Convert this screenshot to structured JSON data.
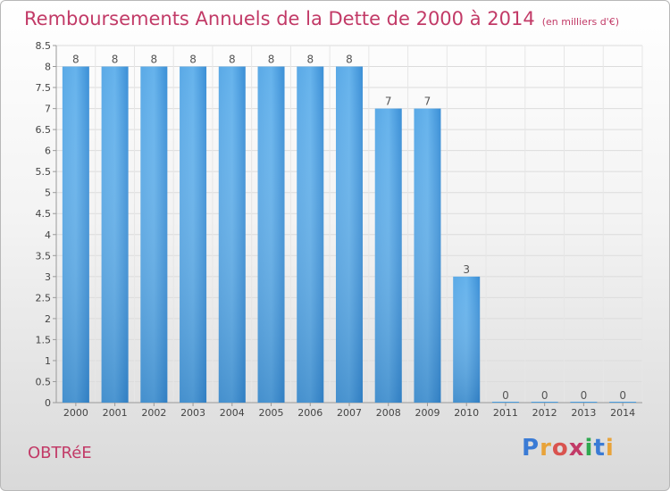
{
  "title": "Remboursements Annuels de la Dette de 2000 à 2014",
  "title_unit": "(en milliers d'€)",
  "commune": "OBTRéE",
  "logo_text": "Proxiti",
  "colors": {
    "bar": "#4a9ee0",
    "bar_light": "#6cb6ee",
    "title": "#c23a67",
    "logo": [
      "#3a7bd5",
      "#e8a33a",
      "#d9534f",
      "#c23a67",
      "#2fa84f",
      "#3a7bd5",
      "#e8a33a"
    ]
  },
  "chart_data": {
    "type": "bar",
    "title": "Remboursements Annuels de la Dette de 2000 à 2014",
    "ylabel": "en milliers d'€",
    "categories": [
      "2000",
      "2001",
      "2002",
      "2003",
      "2004",
      "2005",
      "2006",
      "2007",
      "2008",
      "2009",
      "2010",
      "2011",
      "2012",
      "2013",
      "2014"
    ],
    "values": [
      8,
      8,
      8,
      8,
      8,
      8,
      8,
      8,
      7,
      7,
      3,
      0,
      0,
      0,
      0
    ],
    "value_labels": [
      "8",
      "8",
      "8",
      "8",
      "8",
      "8",
      "8",
      "8",
      "7",
      "7",
      "3",
      "0",
      "0",
      "0",
      "0"
    ],
    "ylim": [
      0,
      8.5
    ],
    "yticks": [
      0,
      0.5,
      1,
      1.5,
      2,
      2.5,
      3,
      3.5,
      4,
      4.5,
      5,
      5.5,
      6,
      6.5,
      7,
      7.5,
      8,
      8.5
    ],
    "ytick_labels": [
      "0",
      "0.5",
      "1",
      "1.5",
      "2",
      "2.5",
      "3",
      "3.5",
      "4",
      "4.5",
      "5",
      "5.5",
      "6",
      "6.5",
      "7",
      "7.5",
      "8",
      "8.5"
    ],
    "grid": true
  }
}
